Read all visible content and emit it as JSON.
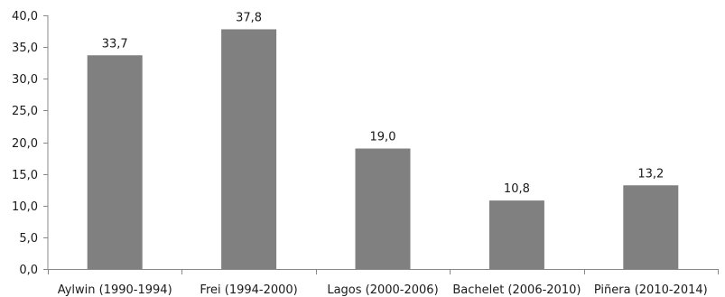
{
  "chart_data": {
    "type": "bar",
    "categories": [
      "Aylwin (1990-1994)",
      "Frei (1994-2000)",
      "Lagos (2000-2006)",
      "Bachelet (2006-2010)",
      "Piñera (2010-2014)"
    ],
    "values": [
      33.7,
      37.8,
      19.0,
      10.8,
      13.2
    ],
    "value_labels": [
      "33,7",
      "37,8",
      "19,0",
      "10,8",
      "13,2"
    ],
    "title": "",
    "xlabel": "",
    "ylabel": "",
    "ylim": [
      0,
      40
    ],
    "yticks": [
      0,
      5,
      10,
      15,
      20,
      25,
      30,
      35,
      40
    ],
    "ytick_labels": [
      "0,0",
      "5,0",
      "10,0",
      "15,0",
      "20,0",
      "25,0",
      "30,0",
      "35,0",
      "40,0"
    ],
    "grid": false,
    "legend": "none",
    "bar_color": "#808080",
    "axis_color": "#888888"
  }
}
